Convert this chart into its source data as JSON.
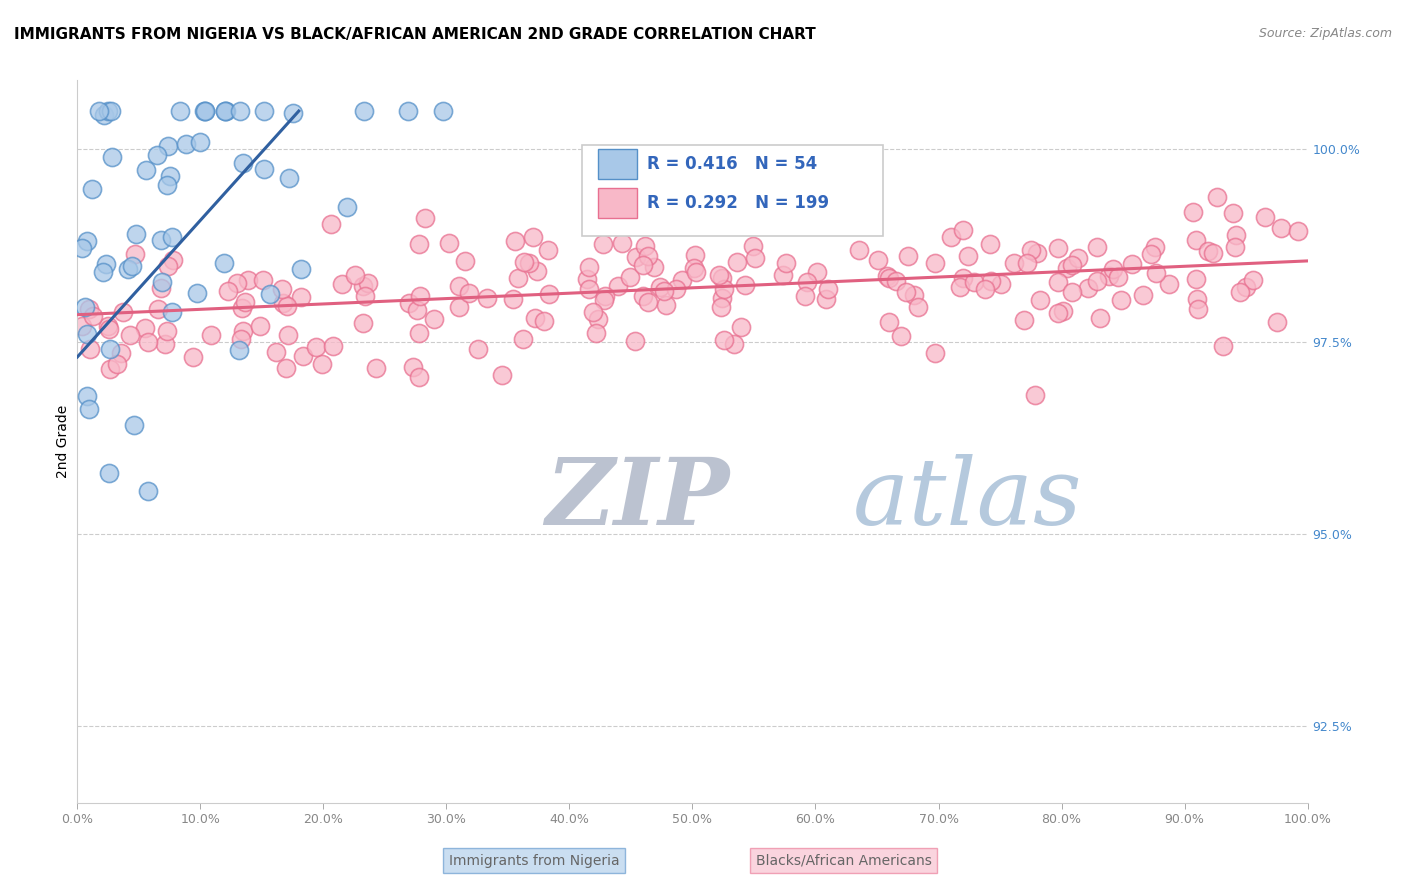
{
  "title": "IMMIGRANTS FROM NIGERIA VS BLACK/AFRICAN AMERICAN 2ND GRADE CORRELATION CHART",
  "source": "Source: ZipAtlas.com",
  "ylabel": "2nd Grade",
  "ylabel_right_ticks": [
    92.5,
    95.0,
    97.5,
    100.0
  ],
  "ylabel_right_labels": [
    "92.5%",
    "95.0%",
    "97.5%",
    "100.0%"
  ],
  "xmin": 0.0,
  "xmax": 100.0,
  "ymin": 91.5,
  "ymax": 100.9,
  "legend_label1": "Immigrants from Nigeria",
  "legend_label2": "Blacks/African Americans",
  "R1": 0.416,
  "N1": 54,
  "R2": 0.292,
  "N2": 199,
  "color_blue_fill": "#a8c8e8",
  "color_blue_edge": "#5590c8",
  "color_pink_fill": "#f8b8c8",
  "color_pink_edge": "#e87090",
  "color_blue_line": "#3060a0",
  "color_pink_line": "#e06080",
  "watermark_zip": "#b0b8c8",
  "watermark_atlas": "#a8c0d8",
  "blue_trend_x0": 0.0,
  "blue_trend_y0": 97.3,
  "blue_trend_x1": 18.0,
  "blue_trend_y1": 100.5,
  "pink_trend_x0": 0.0,
  "pink_trend_y0": 97.85,
  "pink_trend_x1": 100.0,
  "pink_trend_y1": 98.55
}
